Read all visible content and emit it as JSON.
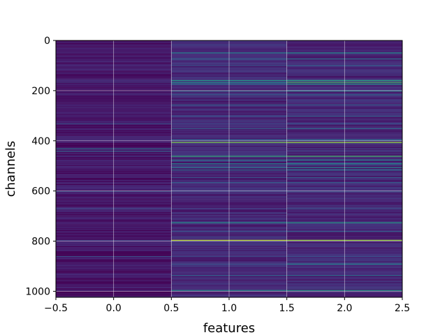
{
  "chart_data": {
    "type": "heatmap",
    "title": "",
    "xlabel": "features",
    "ylabel": "channels",
    "xlim": [
      -0.5,
      2.5
    ],
    "ylim": [
      1024,
      0
    ],
    "y_inverted": true,
    "grid": true,
    "colormap": "viridis",
    "x_ticks": [
      -0.5,
      0.0,
      0.5,
      1.0,
      1.5,
      2.0,
      2.5
    ],
    "x_tick_labels": [
      "−0.5",
      "0.0",
      "0.5",
      "1.0",
      "1.5",
      "2.0",
      "2.5"
    ],
    "y_ticks": [
      0,
      200,
      400,
      600,
      800,
      1000
    ],
    "y_tick_labels": [
      "0",
      "200",
      "400",
      "600",
      "800",
      "1000"
    ],
    "columns": [
      0,
      1,
      2
    ],
    "rows": 1024,
    "base_level": [
      0.06,
      0.11,
      0.11
    ],
    "highlight_rows": [
      {
        "row": 48,
        "values": [
          0.1,
          0.45,
          0.5
        ]
      },
      {
        "row": 72,
        "values": [
          0.1,
          0.3,
          0.35
        ]
      },
      {
        "row": 98,
        "values": [
          0.12,
          0.25,
          0.3
        ]
      },
      {
        "row": 158,
        "values": [
          0.15,
          0.55,
          0.6
        ]
      },
      {
        "row": 165,
        "values": [
          0.18,
          0.5,
          0.7
        ]
      },
      {
        "row": 172,
        "values": [
          0.12,
          0.4,
          0.55
        ]
      },
      {
        "row": 200,
        "values": [
          0.1,
          0.35,
          0.45
        ]
      },
      {
        "row": 215,
        "values": [
          0.1,
          0.3,
          0.35
        ]
      },
      {
        "row": 255,
        "values": [
          0.12,
          0.3,
          0.3
        ]
      },
      {
        "row": 300,
        "values": [
          0.1,
          0.25,
          0.3
        ]
      },
      {
        "row": 330,
        "values": [
          0.25,
          0.2,
          0.25
        ]
      },
      {
        "row": 350,
        "values": [
          0.1,
          0.3,
          0.35
        ]
      },
      {
        "row": 395,
        "values": [
          0.12,
          0.35,
          0.4
        ]
      },
      {
        "row": 405,
        "values": [
          0.12,
          0.8,
          0.85
        ]
      },
      {
        "row": 430,
        "values": [
          0.35,
          0.15,
          0.2
        ]
      },
      {
        "row": 440,
        "values": [
          0.3,
          0.15,
          0.2
        ]
      },
      {
        "row": 460,
        "values": [
          0.15,
          0.65,
          0.7
        ]
      },
      {
        "row": 475,
        "values": [
          0.12,
          0.4,
          0.45
        ]
      },
      {
        "row": 490,
        "values": [
          0.1,
          0.45,
          0.5
        ]
      },
      {
        "row": 505,
        "values": [
          0.1,
          0.4,
          0.45
        ]
      },
      {
        "row": 515,
        "values": [
          0.1,
          0.35,
          0.4
        ]
      },
      {
        "row": 545,
        "values": [
          0.1,
          0.25,
          0.3
        ]
      },
      {
        "row": 565,
        "values": [
          0.1,
          0.3,
          0.3
        ]
      },
      {
        "row": 600,
        "values": [
          0.25,
          0.2,
          0.25
        ]
      },
      {
        "row": 670,
        "values": [
          0.22,
          0.2,
          0.25
        ]
      },
      {
        "row": 725,
        "values": [
          0.12,
          0.5,
          0.55
        ]
      },
      {
        "row": 760,
        "values": [
          0.1,
          0.25,
          0.3
        ]
      },
      {
        "row": 795,
        "values": [
          0.2,
          0.9,
          0.85
        ]
      },
      {
        "row": 860,
        "values": [
          0.25,
          0.2,
          0.25
        ]
      },
      {
        "row": 890,
        "values": [
          0.1,
          0.25,
          0.45
        ]
      },
      {
        "row": 935,
        "values": [
          0.1,
          0.3,
          0.35
        ]
      },
      {
        "row": 995,
        "values": [
          0.12,
          0.5,
          0.55
        ]
      }
    ]
  }
}
